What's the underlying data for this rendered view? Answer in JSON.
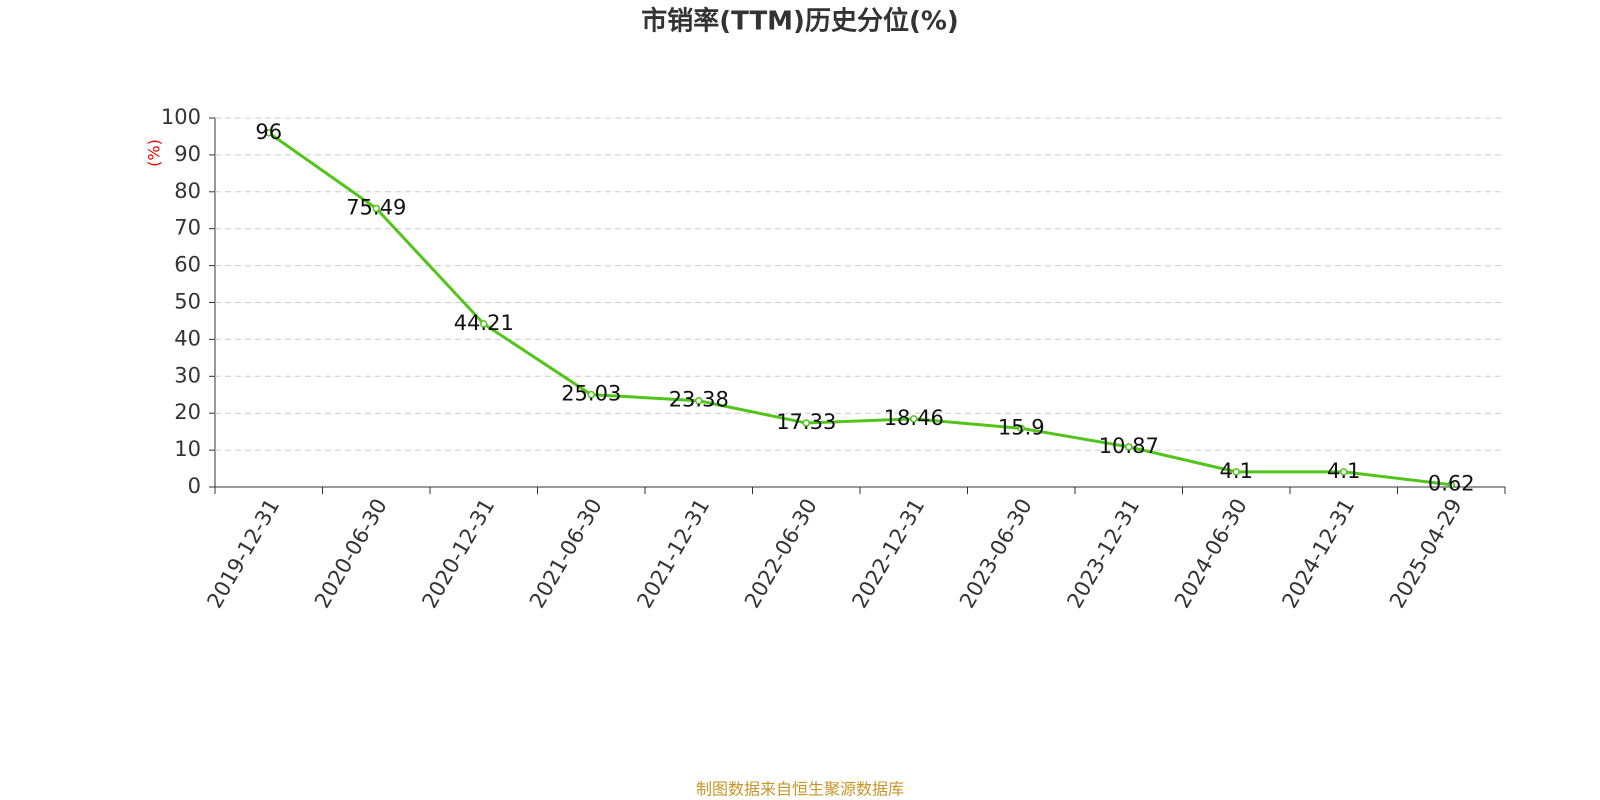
{
  "chart_data": {
    "type": "line",
    "title": "市销率(TTM)历史分位(%)",
    "y_label": "(%)",
    "categories": [
      "2019-12-31",
      "2020-06-30",
      "2020-12-31",
      "2021-06-30",
      "2021-12-31",
      "2022-06-30",
      "2022-12-31",
      "2023-06-30",
      "2023-12-31",
      "2024-06-30",
      "2024-12-31",
      "2025-04-29"
    ],
    "values": [
      96,
      75.49,
      44.21,
      25.03,
      23.38,
      17.33,
      18.46,
      15.9,
      10.87,
      4.1,
      4.1,
      0.62
    ],
    "color": "#52c41a",
    "ylim": [
      0,
      100
    ],
    "yticks": [
      0,
      10,
      20,
      30,
      40,
      50,
      60,
      70,
      80,
      90,
      100
    ],
    "grid": true,
    "source": "制图数据来自恒生聚源数据库"
  }
}
